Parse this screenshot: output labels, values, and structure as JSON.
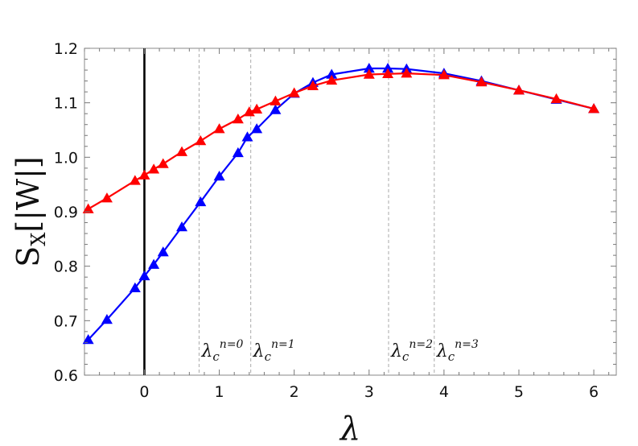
{
  "chart_data": {
    "type": "line",
    "xlabel": "λ",
    "ylabel": {
      "base": "S",
      "sub": "X",
      "rest": "[|W|]"
    },
    "xlim": [
      -0.8,
      6.3
    ],
    "ylim": [
      0.6,
      1.2
    ],
    "xticks": [
      "0",
      "1",
      "2",
      "3",
      "4",
      "5",
      "6"
    ],
    "yticks": [
      "0.6",
      "0.7",
      "0.8",
      "0.9",
      "1.0",
      "1.1",
      "1.2"
    ],
    "grid": false,
    "zero_line_x": 0,
    "critical_lines": [
      {
        "x": 0.73,
        "base": "λ",
        "sub": "c",
        "sup": "n=0"
      },
      {
        "x": 1.42,
        "base": "λ",
        "sub": "c",
        "sup": "n=1"
      },
      {
        "x": 3.26,
        "base": "λ",
        "sub": "c",
        "sup": "n=2"
      },
      {
        "x": 3.87,
        "base": "λ",
        "sub": "c",
        "sup": "n=3"
      }
    ],
    "series": [
      {
        "color": "#0000ff",
        "marker": "triangle",
        "points": [
          [
            -0.75,
            0.665
          ],
          [
            -0.5,
            0.702
          ],
          [
            -0.125,
            0.76
          ],
          [
            0,
            0.782
          ],
          [
            0.125,
            0.803
          ],
          [
            0.25,
            0.826
          ],
          [
            0.5,
            0.872
          ],
          [
            0.75,
            0.918
          ],
          [
            1.0,
            0.965
          ],
          [
            1.25,
            1.008
          ],
          [
            1.375,
            1.037
          ],
          [
            1.5,
            1.052
          ],
          [
            1.75,
            1.087
          ],
          [
            2.0,
            1.117
          ],
          [
            2.25,
            1.137
          ],
          [
            2.5,
            1.152
          ],
          [
            3.0,
            1.163
          ],
          [
            3.25,
            1.163
          ],
          [
            3.5,
            1.162
          ],
          [
            4.0,
            1.154
          ],
          [
            4.5,
            1.14
          ],
          [
            5.0,
            1.123
          ],
          [
            5.5,
            1.106
          ],
          [
            6.0,
            1.089
          ]
        ]
      },
      {
        "color": "#ff0000",
        "marker": "triangle",
        "points": [
          [
            -0.75,
            0.905
          ],
          [
            -0.5,
            0.925
          ],
          [
            -0.125,
            0.957
          ],
          [
            0,
            0.967
          ],
          [
            0.125,
            0.978
          ],
          [
            0.25,
            0.988
          ],
          [
            0.5,
            1.01
          ],
          [
            0.75,
            1.03
          ],
          [
            1.0,
            1.052
          ],
          [
            1.25,
            1.07
          ],
          [
            1.4,
            1.083
          ],
          [
            1.5,
            1.088
          ],
          [
            1.75,
            1.103
          ],
          [
            2.0,
            1.118
          ],
          [
            2.25,
            1.131
          ],
          [
            2.5,
            1.141
          ],
          [
            3.0,
            1.152
          ],
          [
            3.25,
            1.153
          ],
          [
            3.5,
            1.154
          ],
          [
            4.0,
            1.151
          ],
          [
            4.5,
            1.138
          ],
          [
            5.0,
            1.123
          ],
          [
            5.5,
            1.107
          ],
          [
            6.0,
            1.089
          ]
        ]
      }
    ]
  }
}
